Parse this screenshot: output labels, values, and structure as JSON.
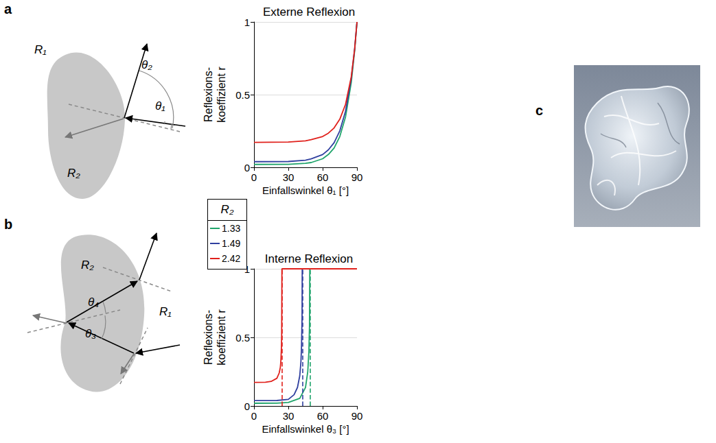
{
  "panels": [
    {
      "letter": "a",
      "outer_medium": "R₁",
      "inner_medium": "R₂",
      "angles": [
        "θ₂",
        "θ₁"
      ]
    },
    {
      "letter": "b",
      "outer_medium": "R₁",
      "inner_medium": "R₂",
      "angles": [
        "θ₄",
        "θ₃"
      ]
    },
    {
      "letter": "c"
    }
  ],
  "legend_title": "R₂",
  "chart_data": [
    {
      "type": "line",
      "title": "Externe Reflexion",
      "x_label": "Einfallswinkel θ₁ [°]",
      "y_label": "Reflexions-\nkoeffizient r",
      "xlim": [
        0,
        90
      ],
      "xticks": [
        0,
        30,
        60,
        90
      ],
      "ylim": [
        0,
        1
      ],
      "yticks": [
        0,
        0.5,
        1
      ],
      "grid": true,
      "legend": "left",
      "series": [
        {
          "name": "1.33",
          "color": "#1fa46b",
          "x": [
            0,
            30,
            45,
            50,
            60,
            65,
            70,
            75,
            80,
            85,
            88,
            90
          ],
          "values": [
            0.02,
            0.021,
            0.028,
            0.033,
            0.059,
            0.088,
            0.133,
            0.212,
            0.347,
            0.583,
            0.804,
            1
          ]
        },
        {
          "name": "1.49",
          "color": "#2f3f9f",
          "x": [
            0,
            30,
            45,
            50,
            60,
            65,
            70,
            75,
            80,
            85,
            88,
            90
          ],
          "values": [
            0.039,
            0.04,
            0.049,
            0.058,
            0.088,
            0.12,
            0.169,
            0.251,
            0.386,
            0.612,
            0.818,
            1
          ]
        },
        {
          "name": "2.42",
          "color": "#e0201b",
          "x": [
            0,
            30,
            45,
            50,
            60,
            65,
            70,
            75,
            80,
            85,
            88,
            90
          ],
          "values": [
            0.172,
            0.174,
            0.182,
            0.19,
            0.212,
            0.235,
            0.271,
            0.331,
            0.433,
            0.622,
            0.814,
            1
          ]
        }
      ]
    },
    {
      "type": "line",
      "title": "Interne Reflexion",
      "x_label": "Einfallswinkel θ₃ [°]",
      "y_label": "Reflexions-\nkoeffizient r",
      "xlim": [
        0,
        90
      ],
      "xticks": [
        0,
        30,
        60,
        90
      ],
      "ylim": [
        0,
        1
      ],
      "yticks": [
        0,
        0.5,
        1
      ],
      "grid": true,
      "legend": "left",
      "series": [
        {
          "name": "1.33",
          "color": "#1fa46b",
          "critical_angle": 48.75,
          "x": [
            0,
            20,
            30,
            40,
            45,
            47,
            48,
            48.5,
            48.75,
            90
          ],
          "values": [
            0.02,
            0.021,
            0.026,
            0.056,
            0.134,
            0.25,
            0.4,
            0.58,
            1,
            1
          ]
        },
        {
          "name": "1.49",
          "color": "#2f3f9f",
          "critical_angle": 42.16,
          "x": [
            0,
            20,
            30,
            35,
            38,
            40,
            41,
            41.5,
            42,
            42.16,
            90
          ],
          "values": [
            0.039,
            0.04,
            0.048,
            0.082,
            0.135,
            0.22,
            0.32,
            0.42,
            0.64,
            1,
            1
          ]
        },
        {
          "name": "2.42",
          "color": "#e0201b",
          "critical_angle": 24.41,
          "x": [
            0,
            10,
            15,
            20,
            22,
            23,
            23.5,
            24,
            24.2,
            24.41,
            90
          ],
          "values": [
            0.172,
            0.173,
            0.179,
            0.202,
            0.24,
            0.28,
            0.33,
            0.43,
            0.52,
            1,
            1
          ]
        }
      ]
    }
  ]
}
